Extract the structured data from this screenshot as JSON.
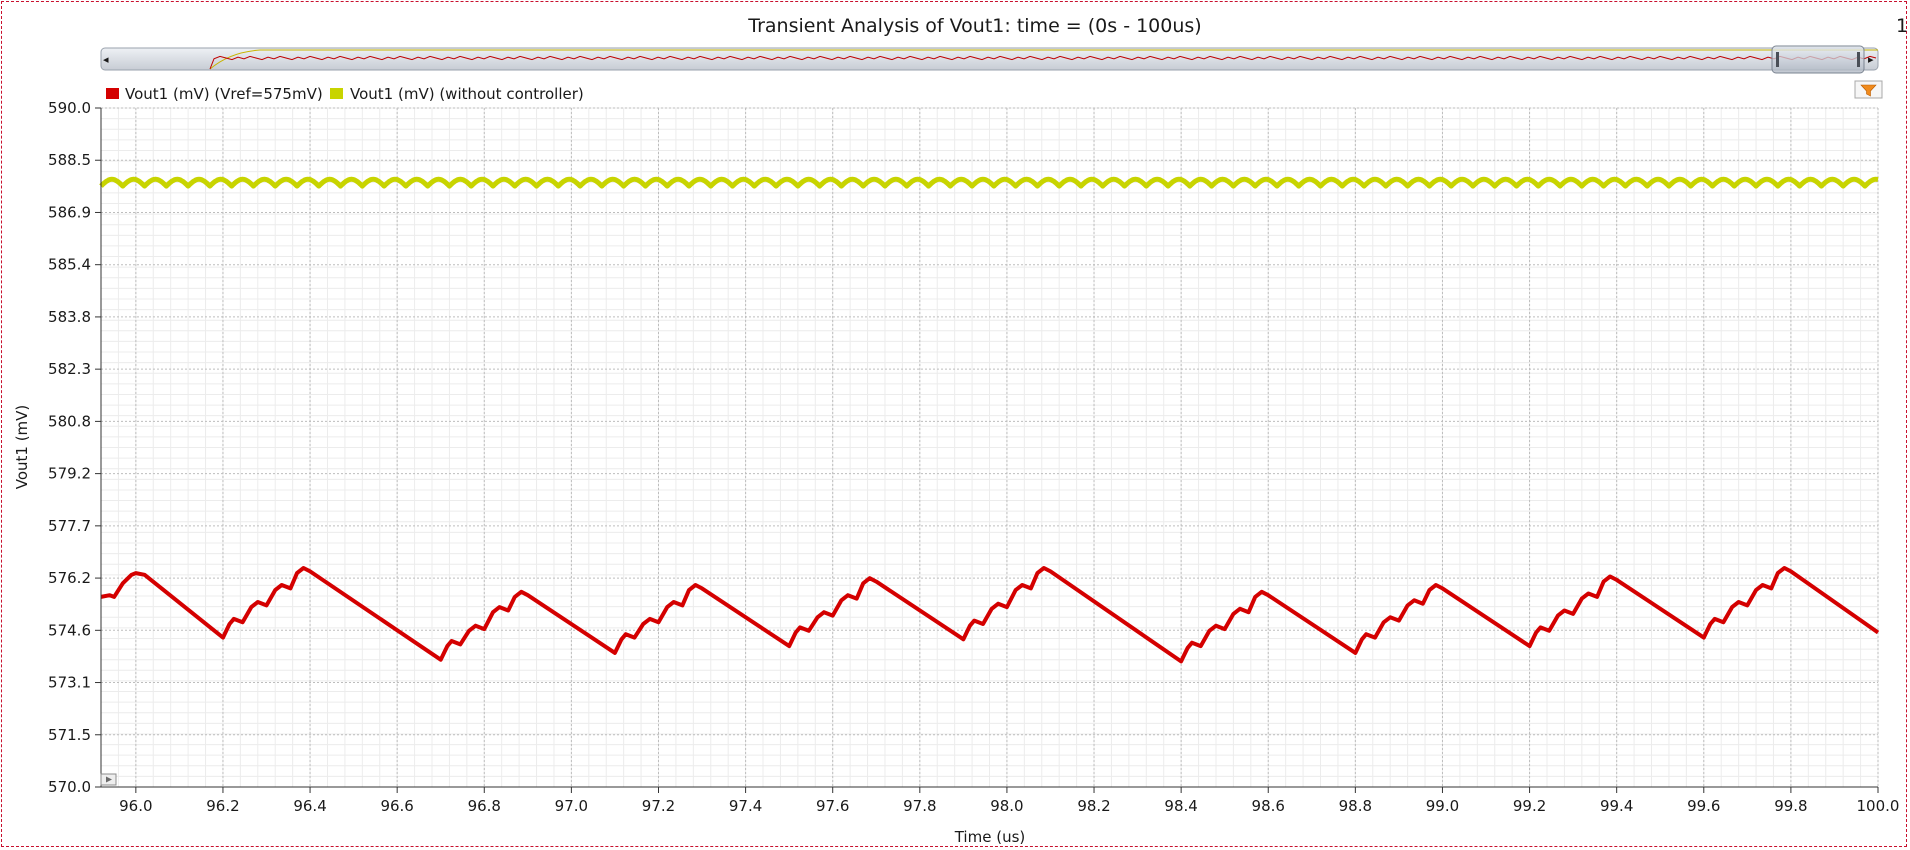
{
  "page_marker": "1",
  "overview": {
    "left_arrow": "◂",
    "right_arrow": "▸"
  },
  "filter_icon": "filter-icon",
  "chart_data": {
    "type": "line",
    "title": "Transient Analysis of Vout1: time = (0s - 100us)",
    "xlabel": "Time (us)",
    "ylabel": "Vout1 (mV)",
    "xlim": [
      95.92,
      100.0
    ],
    "ylim": [
      570.0,
      590.0
    ],
    "x_ticks": [
      "96.0",
      "96.2",
      "96.4",
      "96.6",
      "96.8",
      "97.0",
      "97.2",
      "97.4",
      "97.6",
      "97.8",
      "98.0",
      "98.2",
      "98.4",
      "98.6",
      "98.8",
      "99.0",
      "99.2",
      "99.4",
      "99.6",
      "99.8",
      "100.0"
    ],
    "y_ticks": [
      "590.0",
      "588.5",
      "586.9",
      "585.4",
      "583.8",
      "582.3",
      "580.8",
      "579.2",
      "577.7",
      "576.2",
      "574.6",
      "573.1",
      "571.5",
      "570.0"
    ],
    "grid": true,
    "legend_position": "top-left",
    "series": [
      {
        "name": "Vout1 (mV) (Vref=575mV)",
        "color": "#d40000",
        "points": [
          [
            95.92,
            575.6
          ],
          [
            95.94,
            575.65
          ],
          [
            95.95,
            575.6
          ],
          [
            95.97,
            576.0
          ],
          [
            95.99,
            576.25
          ],
          [
            96.0,
            576.3
          ],
          [
            96.02,
            576.25
          ],
          [
            96.2,
            574.4
          ],
          [
            96.215,
            574.8
          ],
          [
            96.225,
            574.95
          ],
          [
            96.245,
            574.85
          ],
          [
            96.265,
            575.3
          ],
          [
            96.28,
            575.45
          ],
          [
            96.3,
            575.35
          ],
          [
            96.32,
            575.8
          ],
          [
            96.335,
            575.95
          ],
          [
            96.355,
            575.85
          ],
          [
            96.37,
            576.3
          ],
          [
            96.385,
            576.45
          ],
          [
            96.4,
            576.35
          ],
          [
            96.7,
            573.75
          ],
          [
            96.715,
            574.15
          ],
          [
            96.725,
            574.3
          ],
          [
            96.745,
            574.2
          ],
          [
            96.765,
            574.6
          ],
          [
            96.78,
            574.75
          ],
          [
            96.8,
            574.65
          ],
          [
            96.82,
            575.15
          ],
          [
            96.835,
            575.3
          ],
          [
            96.855,
            575.2
          ],
          [
            96.87,
            575.6
          ],
          [
            96.885,
            575.75
          ],
          [
            96.9,
            575.65
          ],
          [
            97.1,
            573.95
          ],
          [
            97.115,
            574.35
          ],
          [
            97.125,
            574.5
          ],
          [
            97.145,
            574.4
          ],
          [
            97.165,
            574.8
          ],
          [
            97.18,
            574.95
          ],
          [
            97.2,
            574.85
          ],
          [
            97.22,
            575.3
          ],
          [
            97.235,
            575.45
          ],
          [
            97.255,
            575.35
          ],
          [
            97.27,
            575.8
          ],
          [
            97.285,
            575.95
          ],
          [
            97.3,
            575.85
          ],
          [
            97.5,
            574.15
          ],
          [
            97.515,
            574.55
          ],
          [
            97.525,
            574.7
          ],
          [
            97.545,
            574.6
          ],
          [
            97.565,
            575.0
          ],
          [
            97.58,
            575.15
          ],
          [
            97.6,
            575.05
          ],
          [
            97.62,
            575.5
          ],
          [
            97.635,
            575.65
          ],
          [
            97.655,
            575.55
          ],
          [
            97.67,
            576.0
          ],
          [
            97.685,
            576.15
          ],
          [
            97.7,
            576.05
          ],
          [
            97.9,
            574.35
          ],
          [
            97.915,
            574.75
          ],
          [
            97.925,
            574.9
          ],
          [
            97.945,
            574.8
          ],
          [
            97.965,
            575.25
          ],
          [
            97.98,
            575.4
          ],
          [
            98.0,
            575.3
          ],
          [
            98.02,
            575.8
          ],
          [
            98.035,
            575.95
          ],
          [
            98.055,
            575.85
          ],
          [
            98.07,
            576.3
          ],
          [
            98.085,
            576.45
          ],
          [
            98.1,
            576.35
          ],
          [
            98.4,
            573.7
          ],
          [
            98.415,
            574.1
          ],
          [
            98.425,
            574.25
          ],
          [
            98.445,
            574.15
          ],
          [
            98.465,
            574.6
          ],
          [
            98.48,
            574.75
          ],
          [
            98.5,
            574.65
          ],
          [
            98.52,
            575.1
          ],
          [
            98.535,
            575.25
          ],
          [
            98.555,
            575.15
          ],
          [
            98.57,
            575.6
          ],
          [
            98.585,
            575.75
          ],
          [
            98.6,
            575.65
          ],
          [
            98.8,
            573.95
          ],
          [
            98.815,
            574.35
          ],
          [
            98.825,
            574.5
          ],
          [
            98.845,
            574.4
          ],
          [
            98.865,
            574.85
          ],
          [
            98.88,
            575.0
          ],
          [
            98.9,
            574.9
          ],
          [
            98.92,
            575.35
          ],
          [
            98.935,
            575.5
          ],
          [
            98.955,
            575.4
          ],
          [
            98.97,
            575.8
          ],
          [
            98.985,
            575.95
          ],
          [
            99.0,
            575.85
          ],
          [
            99.2,
            574.15
          ],
          [
            99.215,
            574.55
          ],
          [
            99.225,
            574.7
          ],
          [
            99.245,
            574.6
          ],
          [
            99.265,
            575.05
          ],
          [
            99.28,
            575.2
          ],
          [
            99.3,
            575.1
          ],
          [
            99.32,
            575.55
          ],
          [
            99.335,
            575.7
          ],
          [
            99.355,
            575.6
          ],
          [
            99.37,
            576.05
          ],
          [
            99.385,
            576.2
          ],
          [
            99.4,
            576.1
          ],
          [
            99.6,
            574.4
          ],
          [
            99.615,
            574.8
          ],
          [
            99.625,
            574.95
          ],
          [
            99.645,
            574.85
          ],
          [
            99.665,
            575.3
          ],
          [
            99.68,
            575.45
          ],
          [
            99.7,
            575.35
          ],
          [
            99.72,
            575.8
          ],
          [
            99.735,
            575.95
          ],
          [
            99.755,
            575.85
          ],
          [
            99.77,
            576.3
          ],
          [
            99.785,
            576.45
          ],
          [
            99.8,
            576.35
          ],
          [
            100.0,
            574.55
          ]
        ]
      },
      {
        "name": "Vout1 (mV) (without controller)",
        "color": "#c8d400",
        "ripple": {
          "mean_mv": 587.8,
          "peak_to_peak_mv": 0.2,
          "period_us": 0.05
        }
      }
    ]
  }
}
